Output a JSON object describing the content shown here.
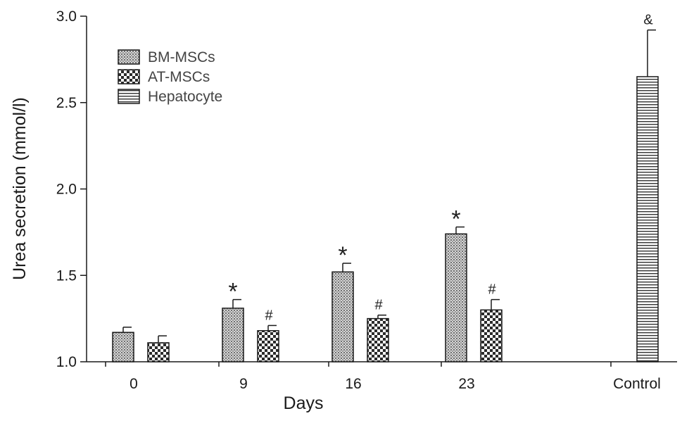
{
  "chart_data": {
    "type": "bar",
    "title": "",
    "xlabel": "Days",
    "ylabel": "Urea secretion (mmol/l)",
    "ylim": [
      1.0,
      3.0
    ],
    "yticks": [
      "1.0",
      "1.5",
      "2.0",
      "2.5",
      "3.0"
    ],
    "categories": [
      "0",
      "9",
      "16",
      "23",
      "Control"
    ],
    "legend_position": "top-left",
    "series": [
      {
        "name": "BM-MSCs",
        "pattern": "dots-fine",
        "values": [
          1.17,
          1.31,
          1.52,
          1.74,
          null
        ],
        "errors": [
          0.03,
          0.05,
          0.05,
          0.04,
          null
        ],
        "annotations": [
          "",
          "*",
          "*",
          "*",
          ""
        ]
      },
      {
        "name": "AT-MSCs",
        "pattern": "checker",
        "values": [
          1.11,
          1.18,
          1.25,
          1.3,
          null
        ],
        "errors": [
          0.04,
          0.03,
          0.02,
          0.06,
          null
        ],
        "annotations": [
          "",
          "#",
          "#",
          "#",
          ""
        ]
      },
      {
        "name": "Hepatocyte",
        "pattern": "horizontal-lines",
        "values": [
          null,
          null,
          null,
          null,
          2.65
        ],
        "errors": [
          null,
          null,
          null,
          null,
          0.27
        ],
        "annotations": [
          "",
          "",
          "",
          "",
          "&"
        ]
      }
    ]
  }
}
